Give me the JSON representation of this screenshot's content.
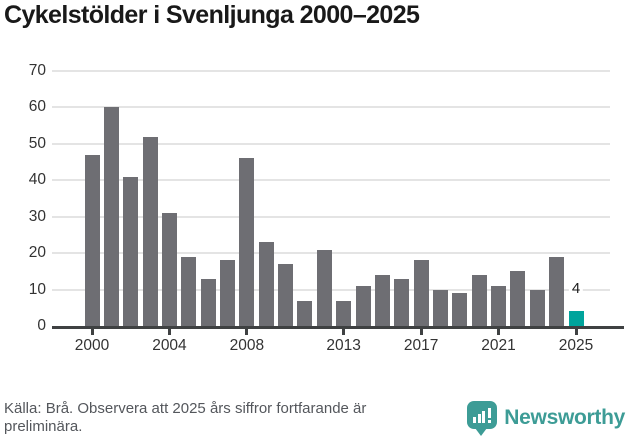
{
  "title": "Cykelstölder i Svenljunga 2000–2025",
  "chart_data": {
    "type": "bar",
    "title": "Cykelstölder i Svenljunga 2000–2025",
    "xlabel": "",
    "ylabel": "",
    "categories": [
      2000,
      2001,
      2002,
      2003,
      2004,
      2005,
      2006,
      2007,
      2008,
      2009,
      2010,
      2011,
      2012,
      2013,
      2014,
      2015,
      2016,
      2017,
      2018,
      2019,
      2020,
      2021,
      2022,
      2023,
      2024,
      2025
    ],
    "values": [
      47,
      60,
      41,
      52,
      31,
      19,
      13,
      18,
      46,
      23,
      17,
      7,
      21,
      7,
      11,
      14,
      13,
      18,
      10,
      9,
      14,
      11,
      15,
      10,
      19,
      4
    ],
    "ylim": [
      0,
      70
    ],
    "yticks": [
      0,
      10,
      20,
      30,
      40,
      50,
      60,
      70
    ],
    "xticks": [
      2000,
      2004,
      2008,
      2013,
      2017,
      2021,
      2025
    ],
    "grid": true,
    "legend": "none",
    "bar_color": "#6e6e73",
    "grid_color": "#e4e4e4",
    "axis_color": "#3f4142",
    "highlight": {
      "category": 2025,
      "color": "#00a49c"
    },
    "value_labels": [
      {
        "category": 2025,
        "text": "4"
      }
    ]
  },
  "footer": {
    "source_text": "Källa: Brå. Observera att 2025 års siffror fortfarande är\npreliminära."
  },
  "brand": {
    "name": "Newsworthy",
    "color": "#3d9c96",
    "icon": "newsworthy-chart-bubble-icon"
  }
}
